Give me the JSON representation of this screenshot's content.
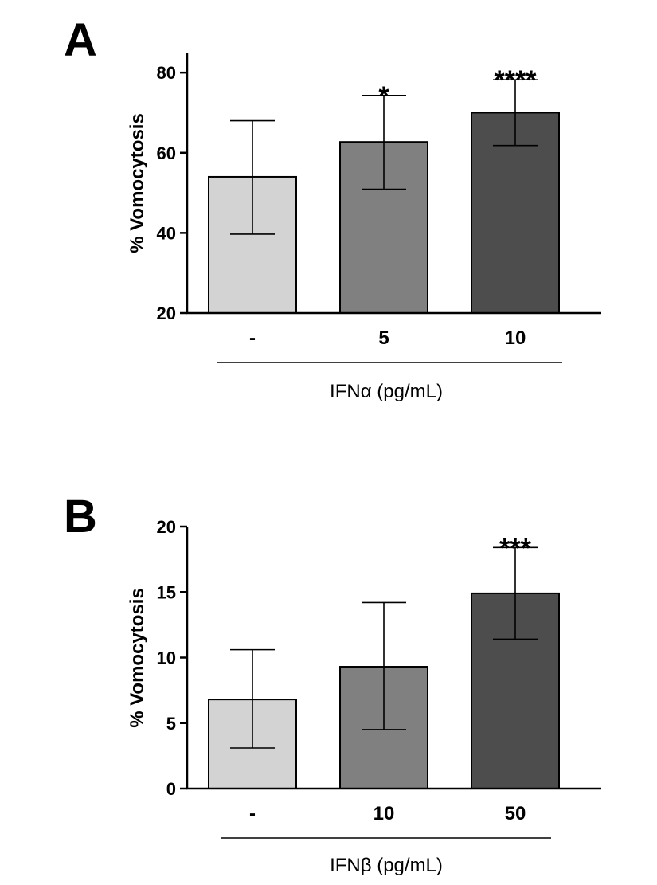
{
  "chart_data": [
    {
      "panel": "A",
      "type": "bar",
      "title": "",
      "categories": [
        "-",
        "5",
        "10"
      ],
      "values": [
        54,
        62.7,
        70
      ],
      "error_high": [
        68,
        74.3,
        78.2
      ],
      "error_low": [
        39.7,
        50.9,
        61.8
      ],
      "significance": [
        "",
        "*",
        "****"
      ],
      "bar_colors": [
        "#d3d3d3",
        "#808080",
        "#4d4d4d"
      ],
      "ylabel": "% Vomocytosis",
      "xlabel": "IFNα (pg/mL)",
      "ylim": [
        20,
        85
      ],
      "yticks": [
        20,
        40,
        60,
        80
      ]
    },
    {
      "panel": "B",
      "type": "bar",
      "title": "",
      "categories": [
        "-",
        "10",
        "50"
      ],
      "values": [
        6.8,
        9.3,
        14.9
      ],
      "error_high": [
        10.6,
        14.2,
        18.4
      ],
      "error_low": [
        3.1,
        4.5,
        11.4
      ],
      "significance": [
        "",
        "",
        "***"
      ],
      "bar_colors": [
        "#d3d3d3",
        "#808080",
        "#4d4d4d"
      ],
      "ylabel": "% Vomocytosis",
      "xlabel": "IFNβ (pg/mL)",
      "ylim": [
        0,
        20
      ],
      "yticks": [
        0,
        5,
        10,
        15,
        20
      ]
    }
  ]
}
